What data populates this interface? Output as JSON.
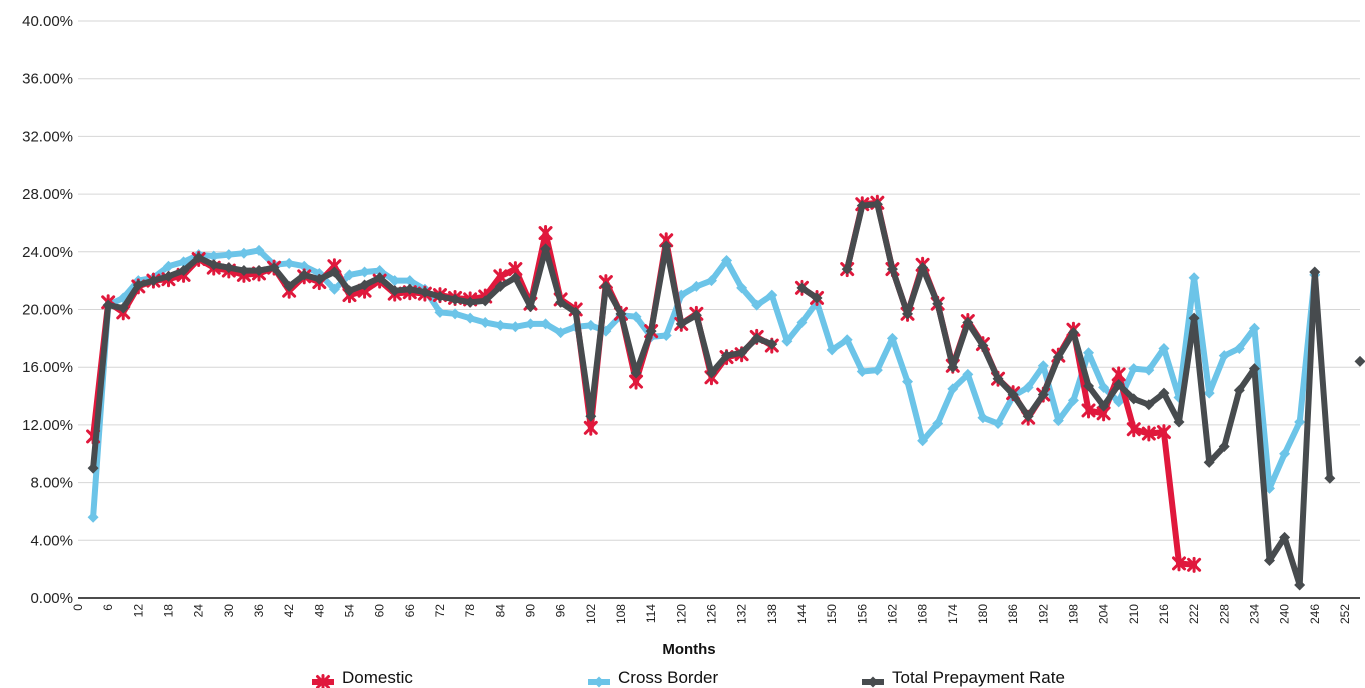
{
  "chart_data": {
    "type": "line",
    "xlabel": "Months",
    "ylabel": "",
    "title": "",
    "xlim": [
      0,
      255
    ],
    "ylim": [
      0,
      40
    ],
    "x_ticks": [
      0,
      6,
      12,
      18,
      24,
      30,
      36,
      42,
      48,
      54,
      60,
      66,
      72,
      78,
      84,
      90,
      96,
      102,
      108,
      114,
      120,
      126,
      132,
      138,
      144,
      150,
      156,
      162,
      168,
      174,
      180,
      186,
      192,
      198,
      204,
      210,
      216,
      222,
      228,
      234,
      240,
      246,
      252
    ],
    "y_ticks": [
      "0.00%",
      "4.00%",
      "8.00%",
      "12.00%",
      "16.00%",
      "20.00%",
      "24.00%",
      "28.00%",
      "32.00%",
      "36.00%",
      "40.00%"
    ],
    "y_tick_values": [
      0,
      4,
      8,
      12,
      16,
      20,
      24,
      28,
      32,
      36,
      40
    ],
    "grid": "horizontal",
    "legend_position": "bottom",
    "series": [
      {
        "name": "Domestic",
        "color": "#e0183c",
        "marker": "star",
        "points": [
          [
            3,
            11.2
          ],
          [
            6,
            20.5
          ],
          [
            9,
            19.8
          ],
          [
            12,
            21.6
          ],
          [
            15,
            22.0
          ],
          [
            18,
            22.1
          ],
          [
            21,
            22.4
          ],
          [
            24,
            23.5
          ],
          [
            27,
            22.9
          ],
          [
            30,
            22.7
          ],
          [
            33,
            22.4
          ],
          [
            36,
            22.5
          ],
          [
            39,
            22.9
          ],
          [
            42,
            21.3
          ],
          [
            45,
            22.3
          ],
          [
            48,
            21.9
          ],
          [
            51,
            23.0
          ],
          [
            54,
            21.0
          ],
          [
            57,
            21.3
          ],
          [
            60,
            22.0
          ],
          [
            63,
            21.1
          ],
          [
            66,
            21.2
          ],
          [
            69,
            21.1
          ],
          [
            72,
            21.0
          ],
          [
            75,
            20.8
          ],
          [
            78,
            20.7
          ],
          [
            81,
            20.9
          ],
          [
            84,
            22.3
          ],
          [
            87,
            22.8
          ],
          [
            90,
            20.4
          ],
          [
            93,
            25.3
          ],
          [
            96,
            20.7
          ],
          [
            99,
            20.0
          ],
          [
            102,
            11.8
          ],
          [
            105,
            21.9
          ],
          [
            108,
            19.7
          ],
          [
            111,
            15.0
          ],
          [
            114,
            18.5
          ],
          [
            117,
            24.8
          ],
          [
            120,
            19.0
          ],
          [
            123,
            19.7
          ],
          [
            126,
            15.3
          ],
          [
            129,
            16.7
          ],
          [
            132,
            16.9
          ],
          [
            135,
            18.1
          ],
          [
            138,
            17.5
          ],
          [
            144,
            21.5
          ],
          [
            147,
            20.8
          ],
          [
            153,
            22.8
          ],
          [
            156,
            27.3
          ],
          [
            159,
            27.4
          ],
          [
            162,
            22.8
          ],
          [
            165,
            19.7
          ],
          [
            168,
            23.1
          ],
          [
            171,
            20.4
          ],
          [
            174,
            16.1
          ],
          [
            177,
            19.2
          ],
          [
            180,
            17.6
          ],
          [
            183,
            15.2
          ],
          [
            186,
            14.2
          ],
          [
            189,
            12.5
          ],
          [
            192,
            14.1
          ],
          [
            195,
            16.8
          ],
          [
            198,
            18.6
          ],
          [
            201,
            13.0
          ],
          [
            204,
            12.8
          ],
          [
            207,
            15.5
          ],
          [
            210,
            11.7
          ],
          [
            213,
            11.4
          ],
          [
            216,
            11.5
          ],
          [
            219,
            2.4
          ],
          [
            222,
            2.3
          ]
        ]
      },
      {
        "name": "Cross Border",
        "color": "#6cc4e8",
        "marker": "diamond",
        "points": [
          [
            3,
            5.6
          ],
          [
            6,
            20.3
          ],
          [
            9,
            20.8
          ],
          [
            12,
            22.0
          ],
          [
            15,
            22.2
          ],
          [
            18,
            23.0
          ],
          [
            21,
            23.3
          ],
          [
            24,
            23.8
          ],
          [
            27,
            23.7
          ],
          [
            30,
            23.8
          ],
          [
            33,
            23.9
          ],
          [
            36,
            24.1
          ],
          [
            39,
            23.1
          ],
          [
            42,
            23.2
          ],
          [
            45,
            23.0
          ],
          [
            48,
            22.5
          ],
          [
            51,
            21.4
          ],
          [
            54,
            22.4
          ],
          [
            57,
            22.6
          ],
          [
            60,
            22.7
          ],
          [
            63,
            22.0
          ],
          [
            66,
            22.0
          ],
          [
            69,
            21.4
          ],
          [
            72,
            19.8
          ],
          [
            75,
            19.7
          ],
          [
            78,
            19.4
          ],
          [
            81,
            19.1
          ],
          [
            84,
            18.9
          ],
          [
            87,
            18.8
          ],
          [
            90,
            19.0
          ],
          [
            93,
            19.0
          ],
          [
            96,
            18.4
          ],
          [
            99,
            18.8
          ],
          [
            102,
            18.9
          ],
          [
            105,
            18.5
          ],
          [
            108,
            19.6
          ],
          [
            111,
            19.5
          ],
          [
            114,
            18.1
          ],
          [
            117,
            18.2
          ],
          [
            120,
            21.0
          ],
          [
            123,
            21.6
          ],
          [
            126,
            22.0
          ],
          [
            129,
            23.4
          ],
          [
            132,
            21.5
          ],
          [
            135,
            20.3
          ],
          [
            138,
            21.0
          ],
          [
            141,
            17.8
          ],
          [
            144,
            19.1
          ],
          [
            147,
            20.5
          ],
          [
            150,
            17.2
          ],
          [
            153,
            17.9
          ],
          [
            156,
            15.7
          ],
          [
            159,
            15.8
          ],
          [
            162,
            18.0
          ],
          [
            165,
            15.0
          ],
          [
            168,
            10.9
          ],
          [
            171,
            12.1
          ],
          [
            174,
            14.5
          ],
          [
            177,
            15.5
          ],
          [
            180,
            12.5
          ],
          [
            183,
            12.1
          ],
          [
            186,
            14.0
          ],
          [
            189,
            14.6
          ],
          [
            192,
            16.1
          ],
          [
            195,
            12.3
          ],
          [
            198,
            13.7
          ],
          [
            201,
            17.0
          ],
          [
            204,
            14.6
          ],
          [
            207,
            13.6
          ],
          [
            210,
            15.9
          ],
          [
            213,
            15.8
          ],
          [
            216,
            17.3
          ],
          [
            219,
            13.9
          ],
          [
            222,
            22.2
          ],
          [
            225,
            14.2
          ],
          [
            228,
            16.8
          ],
          [
            231,
            17.3
          ],
          [
            234,
            18.7
          ],
          [
            237,
            7.6
          ],
          [
            240,
            10.0
          ],
          [
            243,
            12.2
          ],
          [
            246,
            22.4
          ]
        ]
      },
      {
        "name": "Total Prepayment Rate",
        "color": "#474b4e",
        "marker": "diamond",
        "points": [
          [
            3,
            9.0
          ],
          [
            6,
            20.3
          ],
          [
            9,
            20.1
          ],
          [
            12,
            21.7
          ],
          [
            15,
            22.0
          ],
          [
            18,
            22.3
          ],
          [
            21,
            22.7
          ],
          [
            24,
            23.6
          ],
          [
            27,
            23.1
          ],
          [
            30,
            22.9
          ],
          [
            33,
            22.7
          ],
          [
            36,
            22.7
          ],
          [
            39,
            22.9
          ],
          [
            42,
            21.6
          ],
          [
            45,
            22.4
          ],
          [
            48,
            22.1
          ],
          [
            51,
            22.6
          ],
          [
            54,
            21.3
          ],
          [
            57,
            21.7
          ],
          [
            60,
            22.2
          ],
          [
            63,
            21.3
          ],
          [
            66,
            21.4
          ],
          [
            69,
            21.2
          ],
          [
            72,
            20.9
          ],
          [
            75,
            20.7
          ],
          [
            78,
            20.5
          ],
          [
            81,
            20.6
          ],
          [
            84,
            21.6
          ],
          [
            87,
            22.2
          ],
          [
            90,
            20.2
          ],
          [
            93,
            24.2
          ],
          [
            96,
            20.5
          ],
          [
            99,
            19.8
          ],
          [
            102,
            12.6
          ],
          [
            105,
            21.6
          ],
          [
            108,
            19.7
          ],
          [
            111,
            15.6
          ],
          [
            114,
            18.5
          ],
          [
            117,
            24.4
          ],
          [
            120,
            19.0
          ],
          [
            123,
            19.6
          ],
          [
            126,
            15.6
          ],
          [
            129,
            16.8
          ],
          [
            132,
            17.0
          ],
          [
            135,
            18.0
          ],
          [
            138,
            17.6
          ],
          [
            144,
            21.5
          ],
          [
            147,
            20.8
          ],
          [
            153,
            22.8
          ],
          [
            156,
            27.2
          ],
          [
            159,
            27.3
          ],
          [
            162,
            22.8
          ],
          [
            165,
            19.7
          ],
          [
            168,
            22.9
          ],
          [
            171,
            20.4
          ],
          [
            174,
            16.0
          ],
          [
            177,
            19.1
          ],
          [
            180,
            17.5
          ],
          [
            183,
            15.2
          ],
          [
            186,
            14.1
          ],
          [
            189,
            12.6
          ],
          [
            192,
            14.1
          ],
          [
            195,
            16.7
          ],
          [
            198,
            18.4
          ],
          [
            201,
            14.7
          ],
          [
            204,
            13.3
          ],
          [
            207,
            14.8
          ],
          [
            210,
            13.8
          ],
          [
            213,
            13.4
          ],
          [
            216,
            14.2
          ],
          [
            219,
            12.2
          ],
          [
            222,
            19.4
          ],
          [
            225,
            9.4
          ],
          [
            228,
            10.5
          ],
          [
            231,
            14.4
          ],
          [
            234,
            15.9
          ],
          [
            237,
            2.6
          ],
          [
            240,
            4.2
          ],
          [
            243,
            0.9
          ],
          [
            246,
            22.6
          ],
          [
            249,
            8.3
          ],
          [
            255,
            16.4
          ]
        ]
      }
    ]
  }
}
